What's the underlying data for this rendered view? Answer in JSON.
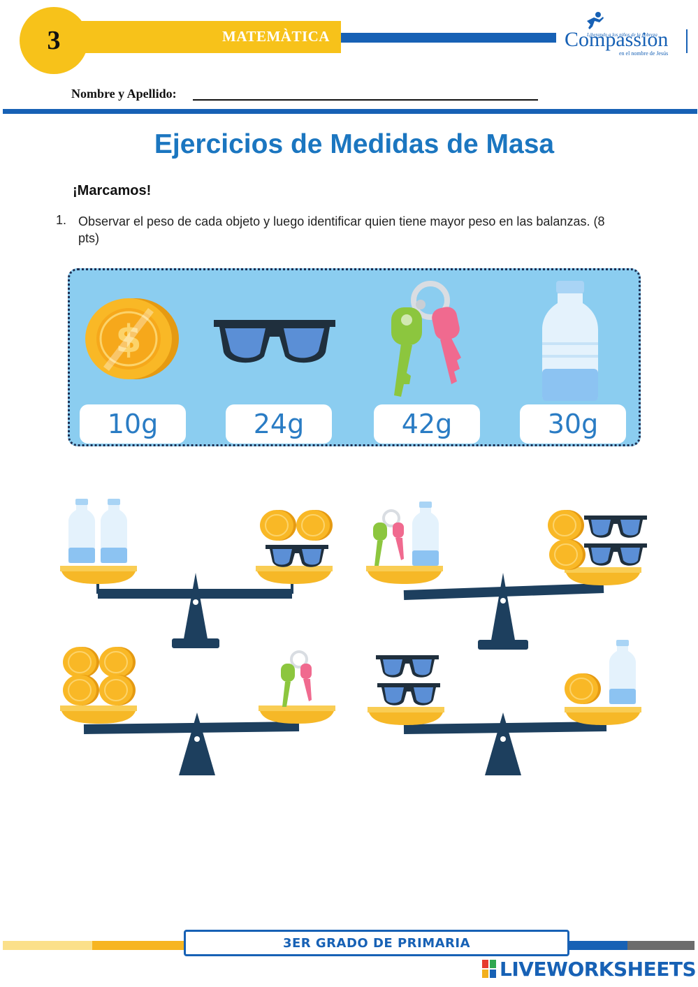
{
  "header": {
    "grade_number": "3",
    "subject": "MATEMÀTICA",
    "logo": {
      "tagline": "Liberando a los niños de la pobreza",
      "name": "Compassion",
      "subline": "en el nombre de Jesús"
    }
  },
  "name_field": {
    "label": "Nombre y Apellido:"
  },
  "worksheet": {
    "title": "Ejercicios de Medidas de Masa",
    "section_heading": "¡Marcamos!",
    "question_number": "1.",
    "question_text": "Observar el peso de cada objeto y luego identificar quien tiene mayor peso en las balanzas. (8 pts)"
  },
  "items": [
    {
      "icon": "coin-icon",
      "weight": "10g"
    },
    {
      "icon": "sunglasses-icon",
      "weight": "24g"
    },
    {
      "icon": "keys-icon",
      "weight": "42g"
    },
    {
      "icon": "water-bottle-icon",
      "weight": "30g"
    }
  ],
  "scales": [
    {
      "left": [
        "water-bottle",
        "water-bottle"
      ],
      "right": [
        "coin",
        "coin",
        "sunglasses"
      ]
    },
    {
      "left": [
        "keys",
        "water-bottle"
      ],
      "right": [
        "coin",
        "sunglasses",
        "coin",
        "sunglasses"
      ]
    },
    {
      "left": [
        "coin",
        "coin",
        "coin",
        "coin"
      ],
      "right": [
        "keys"
      ]
    },
    {
      "left": [
        "sunglasses",
        "sunglasses"
      ],
      "right": [
        "coin",
        "water-bottle"
      ]
    }
  ],
  "footer": {
    "grade_label": "3ER GRADO DE PRIMARIA",
    "brand": "LIVEWORKSHEETS"
  },
  "colors": {
    "yellow": "#f7c21a",
    "blue": "#1761b5",
    "title_blue": "#1b76c0",
    "panel_blue": "#8bcdf0",
    "scale_dark": "#1d3f5e",
    "pan_yellow": "#f6b827"
  }
}
